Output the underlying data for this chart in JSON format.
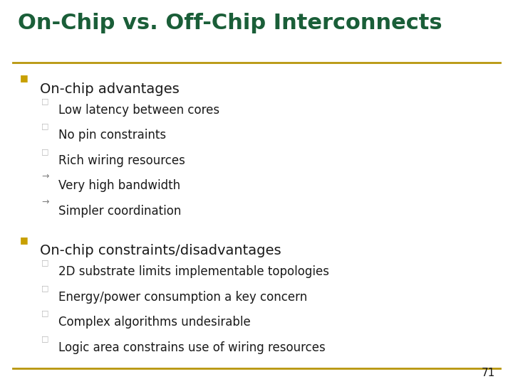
{
  "title": "On-Chip vs. Off-Chip Interconnects",
  "title_color": "#1a5e38",
  "title_fontsize": 22,
  "bg_color": "#ffffff",
  "divider_color": "#b8960c",
  "section1_header": "On-chip advantages",
  "section2_header": "On-chip constraints/disadvantages",
  "section1_items": [
    {
      "type": "square",
      "text": "Low latency between cores"
    },
    {
      "type": "square",
      "text": "No pin constraints"
    },
    {
      "type": "square",
      "text": "Rich wiring resources"
    },
    {
      "type": "arrow",
      "text": "Very high bandwidth"
    },
    {
      "type": "arrow",
      "text": "Simpler coordination"
    }
  ],
  "section2_items": [
    {
      "type": "square",
      "text": "2D substrate limits implementable topologies"
    },
    {
      "type": "square",
      "text": "Energy/power consumption a key concern"
    },
    {
      "type": "square",
      "text": "Complex algorithms undesirable"
    },
    {
      "type": "square",
      "text": "Logic area constrains use of wiring resources"
    }
  ],
  "header_fontsize": 14,
  "item_fontsize": 12,
  "header_color": "#1a1a1a",
  "item_color": "#1a1a1a",
  "page_number": "71",
  "main_bullet_color": "#c8a000",
  "square_bullet_color": "#b8b8b8",
  "arrow_bullet_color": "#808080"
}
